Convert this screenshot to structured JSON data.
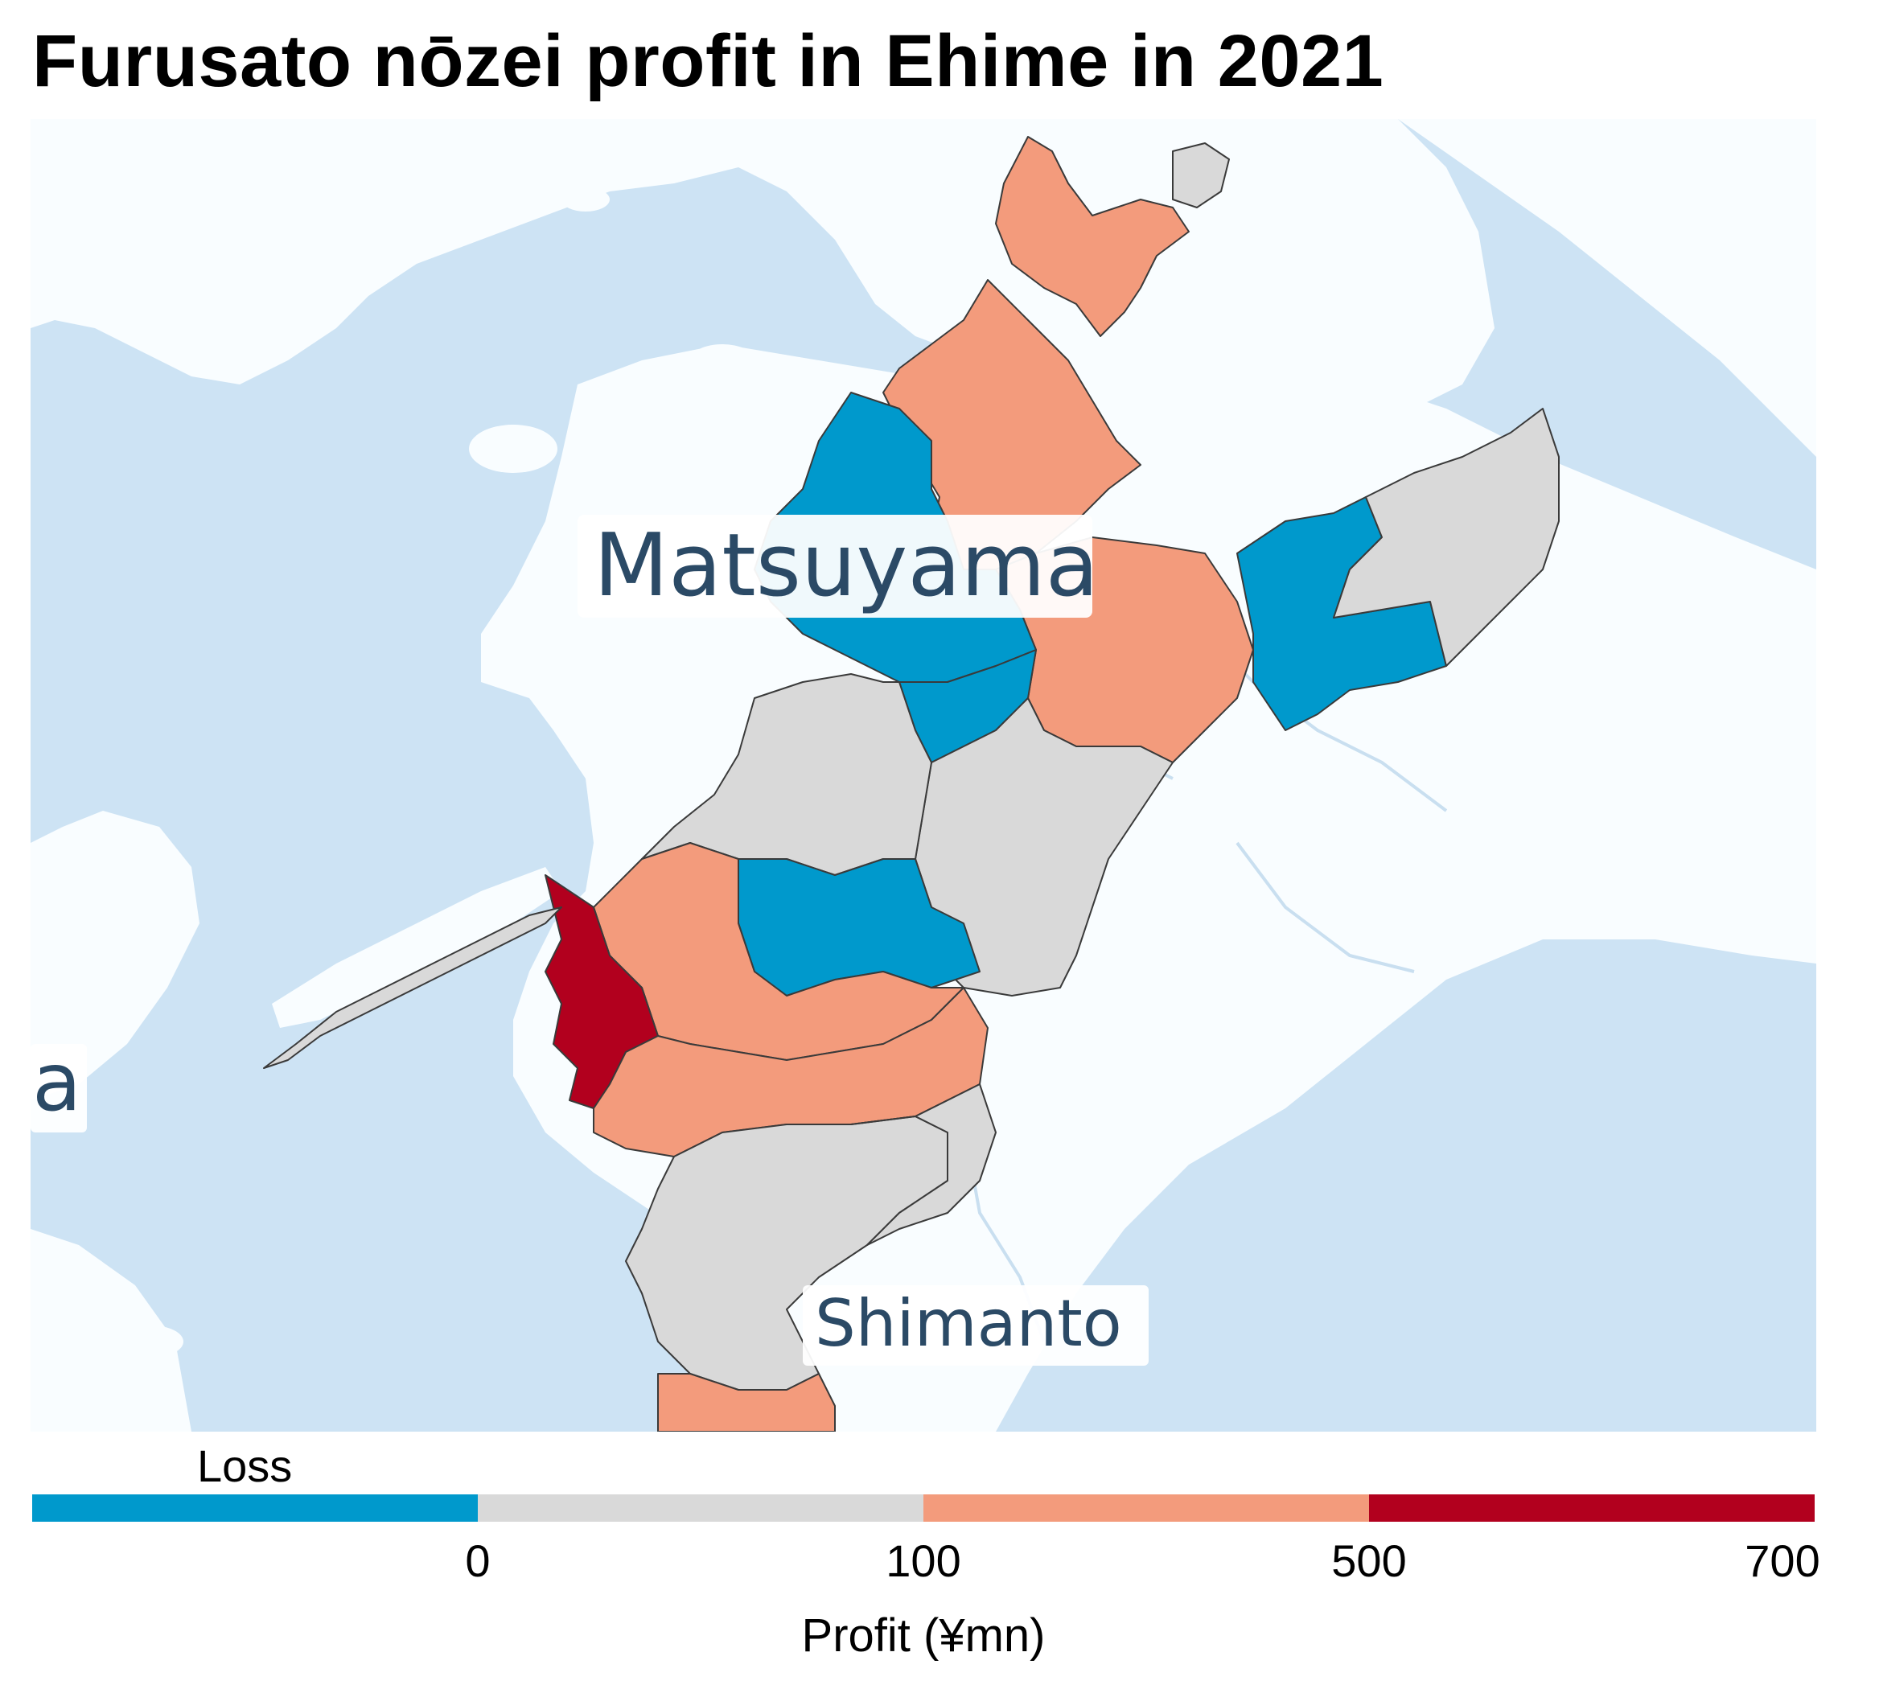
{
  "title": "Furusato nōzei profit in Ehime in 2021",
  "map": {
    "colors": {
      "sea": "#cde3f4",
      "land": "#f9fdff",
      "loss": "#0099cc",
      "0-100": "#d9d9d9",
      "100-500": "#f39b7c",
      "500-700": "#b2001e",
      "border": "#3a3a3a",
      "label_text": "#2b4a66"
    },
    "labels": {
      "matsuyama": "Matsuyama",
      "shimanto": "Shimanto",
      "edge_fragment": "a"
    }
  },
  "legend": {
    "loss_label": "Loss",
    "title": "Profit (¥mn)",
    "ticks": [
      "0",
      "100",
      "500",
      "700"
    ],
    "bins": [
      {
        "name": "Loss",
        "color": "#0099cc"
      },
      {
        "name": "0–100",
        "color": "#d9d9d9"
      },
      {
        "name": "100–500",
        "color": "#f39b7c"
      },
      {
        "name": "500–700",
        "color": "#b2001e"
      }
    ]
  }
}
